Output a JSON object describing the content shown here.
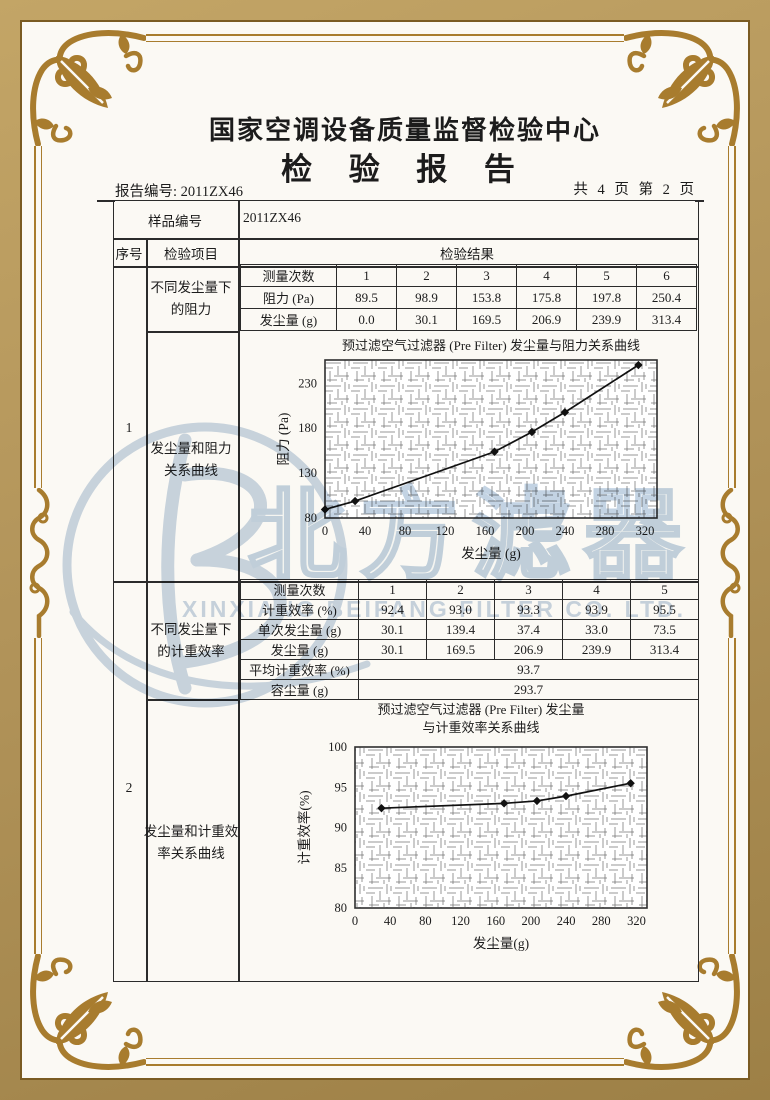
{
  "header": {
    "org_name": "国家空调设备质量监督检验中心",
    "doc_title": "检 验 报 告",
    "report_no": "报告编号: 2011ZX46",
    "page_info": "共 4 页 第 2 页"
  },
  "sample": {
    "label": "样品编号",
    "value": "2011ZX46"
  },
  "columns": {
    "seq": "序号",
    "item": "检验项目",
    "result": "检验结果"
  },
  "sections": [
    {
      "seq": "1",
      "item_condition": [
        "不同发尘量下",
        "的阻力"
      ],
      "item_curve": [
        "发尘量和阻力",
        "关系曲线"
      ],
      "measurements": {
        "header_label": "测量次数",
        "columns": [
          "1",
          "2",
          "3",
          "4",
          "5",
          "6"
        ],
        "rows": [
          {
            "label": "阻力 (Pa)",
            "values": [
              "89.5",
              "98.9",
              "153.8",
              "175.8",
              "197.8",
              "250.4"
            ]
          },
          {
            "label": "发尘量 (g)",
            "values": [
              "0.0",
              "30.1",
              "169.5",
              "206.9",
              "239.9",
              "313.4"
            ]
          }
        ],
        "summary_rows": []
      }
    },
    {
      "seq": "2",
      "item_condition": [
        "不同发尘量下",
        "的计重效率"
      ],
      "item_curve": [
        "发尘量和计重效",
        "率关系曲线"
      ],
      "measurements": {
        "header_label": "测量次数",
        "columns": [
          "1",
          "2",
          "3",
          "4",
          "5"
        ],
        "rows": [
          {
            "label": "计重效率 (%)",
            "values": [
              "92.4",
              "93.0",
              "93.3",
              "93.9",
              "95.5"
            ]
          },
          {
            "label": "单次发尘量 (g)",
            "values": [
              "30.1",
              "139.4",
              "37.4",
              "33.0",
              "73.5"
            ]
          },
          {
            "label": "发尘量 (g)",
            "values": [
              "30.1",
              "169.5",
              "206.9",
              "239.9",
              "313.4"
            ]
          }
        ],
        "summary_rows": [
          {
            "label": "平均计重效率 (%)",
            "value": "93.7"
          },
          {
            "label": "容尘量 (g)",
            "value": "293.7"
          }
        ]
      }
    }
  ],
  "chart_data": [
    {
      "type": "line",
      "title": "预过滤空气过滤器 (Pre Filter) 发尘量与阻力关系曲线",
      "title_lines": [
        "预过滤空气过滤器 (Pre Filter) 发尘量与阻力关系曲线"
      ],
      "xlabel": "发尘量 (g)",
      "ylabel": "阻力 (Pa)",
      "xlim": [
        0,
        332
      ],
      "ylim": [
        80,
        256
      ],
      "xticks": [
        0,
        40,
        80,
        120,
        160,
        200,
        240,
        280,
        320
      ],
      "yticks": [
        80,
        130,
        180,
        230
      ],
      "x": [
        0.0,
        30.1,
        169.5,
        206.9,
        239.9,
        313.4
      ],
      "y": [
        89.5,
        98.9,
        153.8,
        175.8,
        197.8,
        250.4
      ],
      "grid": true,
      "legend": false,
      "marker": "diamond"
    },
    {
      "type": "line",
      "title": "预过滤空气过滤器 (Pre Filter) 发尘量与计重效率关系曲线",
      "title_lines": [
        "预过滤空气过滤器 (Pre Filter) 发尘量",
        "与计重效率关系曲线"
      ],
      "xlabel": "发尘量(g)",
      "ylabel": "计重效率(%)",
      "xlim": [
        0,
        332
      ],
      "ylim": [
        80,
        100
      ],
      "xticks": [
        0,
        40,
        80,
        120,
        160,
        200,
        240,
        280,
        320
      ],
      "yticks": [
        80,
        85,
        90,
        95,
        100
      ],
      "x": [
        30.1,
        169.5,
        206.9,
        239.9,
        313.4
      ],
      "y": [
        92.4,
        93.0,
        93.3,
        93.9,
        95.5
      ],
      "grid": true,
      "legend": false,
      "marker": "diamond"
    }
  ],
  "watermark": {
    "logo": "beifang-filter-logo",
    "text_cn": "北方滤器",
    "text_en": "XINXIANG BEIFANG FILTER CO. LTD.",
    "color": "#c6d4e3"
  },
  "theme": {
    "frame_gold": "#a87c2e",
    "frame_tan": "#b2945a",
    "page_bg": "#fbf9f4",
    "ink": "#1c1c1c"
  }
}
